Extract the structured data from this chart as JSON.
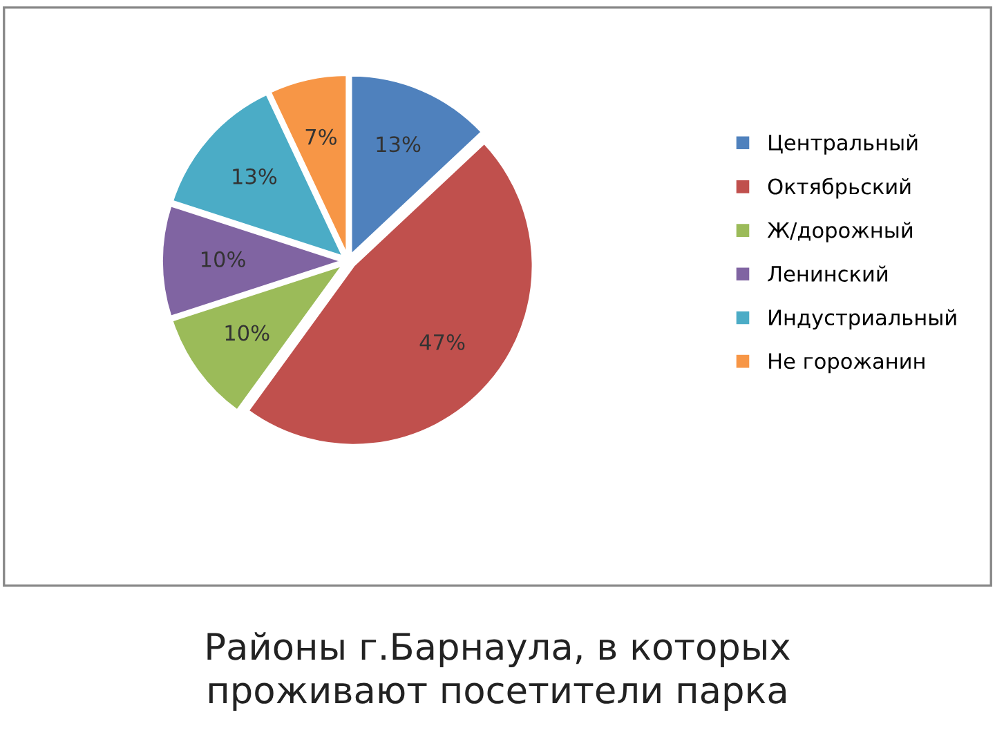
{
  "chart_data": {
    "type": "pie",
    "title": "Районы г.Барнаула, в которых\nпроживают посетители парка",
    "categories": [
      "Центральный",
      "Октябрьский",
      "Ж/дорожный",
      "Ленинский",
      "Индустриальный",
      "Не горожанин"
    ],
    "values": [
      13,
      47,
      10,
      10,
      13,
      7
    ],
    "value_labels": [
      "13%",
      "47%",
      "10%",
      "10%",
      "13%",
      "7%"
    ],
    "colors": [
      "#4f81bd",
      "#c0504d",
      "#9bbb59",
      "#8064a2",
      "#4bacc6",
      "#f79646"
    ],
    "legend": "right"
  }
}
